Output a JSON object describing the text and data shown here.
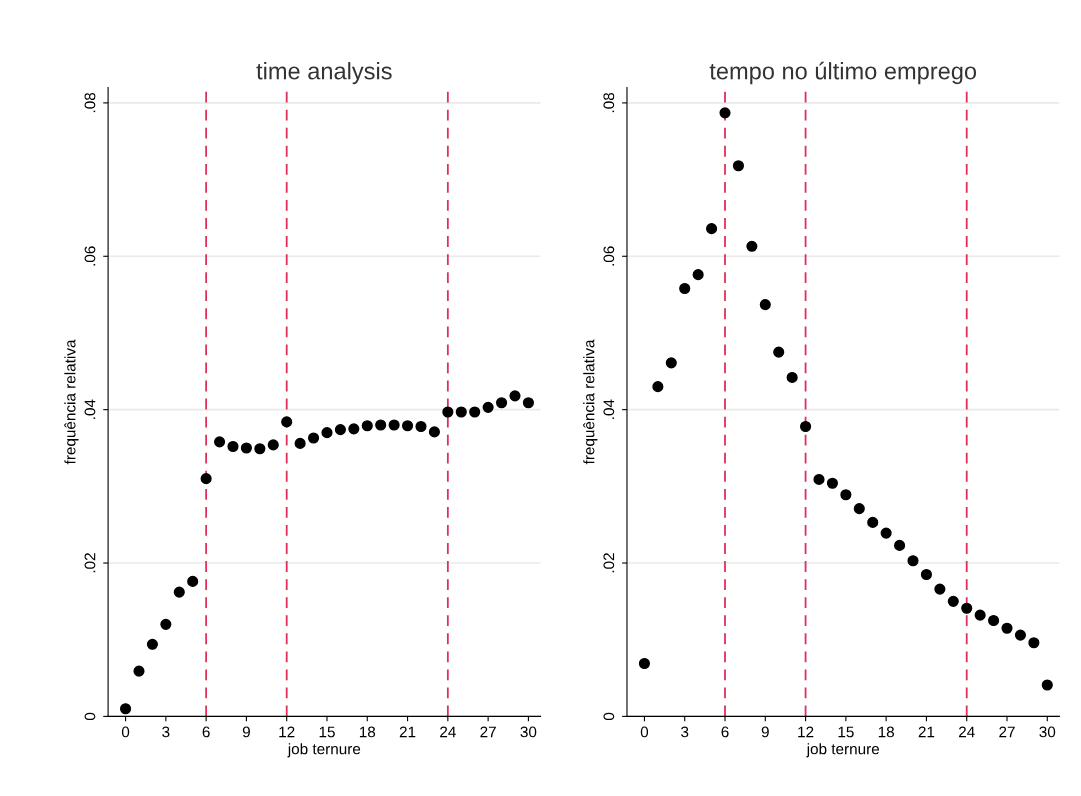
{
  "chart_data": [
    {
      "type": "scatter",
      "title": "time analysis",
      "xlabel": "job ternure",
      "ylabel": "frequência relativa",
      "x": [
        0,
        1,
        2,
        3,
        4,
        5,
        6,
        7,
        8,
        9,
        10,
        11,
        12,
        13,
        14,
        15,
        16,
        17,
        18,
        19,
        20,
        21,
        22,
        23,
        24,
        25,
        26,
        27,
        28,
        29,
        30
      ],
      "series": [
        {
          "color": "#000000",
          "values": [
            0.001,
            0.0059,
            0.0094,
            0.012,
            0.0162,
            0.0176,
            0.031,
            0.0358,
            0.0352,
            0.035,
            0.0349,
            0.0354,
            0.0384,
            0.0356,
            0.0363,
            0.037,
            0.0374,
            0.0375,
            0.0379,
            0.038,
            0.038,
            0.0379,
            0.0378,
            0.0371,
            0.0397,
            0.0397,
            0.0397,
            0.0403,
            0.0409,
            0.0418,
            0.0409
          ]
        }
      ],
      "xlim": [
        -1.3,
        30.9
      ],
      "xticks": [
        0,
        3,
        6,
        9,
        12,
        15,
        18,
        21,
        24,
        27,
        30
      ],
      "ylim": [
        0,
        0.082
      ],
      "yticks": [
        {
          "value": 0,
          "label": "0"
        },
        {
          "value": 0.02,
          "label": ".02"
        },
        {
          "value": 0.04,
          "label": ".04"
        },
        {
          "value": 0.06,
          "label": ".06"
        },
        {
          "value": 0.08,
          "label": ".08"
        }
      ],
      "grid": "y",
      "marker": "circle",
      "ref_lines": [
        {
          "axis": "x",
          "value": 6,
          "color": "#e0305a",
          "line_style": "dashed"
        },
        {
          "axis": "x",
          "value": 12,
          "color": "#e0305a",
          "line_style": "dashed"
        },
        {
          "axis": "x",
          "value": 24,
          "color": "#e0305a",
          "line_style": "dashed"
        }
      ]
    },
    {
      "type": "scatter",
      "title": "tempo no último emprego",
      "xlabel": "job ternure",
      "ylabel": "frequência relativa",
      "x": [
        0,
        1,
        2,
        3,
        4,
        5,
        6,
        7,
        8,
        9,
        10,
        11,
        12,
        13,
        14,
        15,
        16,
        17,
        18,
        19,
        20,
        21,
        22,
        23,
        24,
        25,
        26,
        27,
        28,
        29,
        30
      ],
      "series": [
        {
          "color": "#000000",
          "values": [
            0.0069,
            0.043,
            0.0461,
            0.0558,
            0.0576,
            0.0636,
            0.0787,
            0.0718,
            0.0613,
            0.0537,
            0.0475,
            0.0442,
            0.0378,
            0.0309,
            0.0304,
            0.0289,
            0.0271,
            0.0253,
            0.0239,
            0.0223,
            0.0203,
            0.0185,
            0.0166,
            0.015,
            0.0141,
            0.0132,
            0.0125,
            0.0115,
            0.0106,
            0.0096,
            0.0041
          ]
        }
      ],
      "xlim": [
        -1.3,
        30.9
      ],
      "xticks": [
        0,
        3,
        6,
        9,
        12,
        15,
        18,
        21,
        24,
        27,
        30
      ],
      "ylim": [
        0,
        0.082
      ],
      "yticks": [
        {
          "value": 0,
          "label": "0"
        },
        {
          "value": 0.02,
          "label": ".02"
        },
        {
          "value": 0.04,
          "label": ".04"
        },
        {
          "value": 0.06,
          "label": ".06"
        },
        {
          "value": 0.08,
          "label": ".08"
        }
      ],
      "grid": "y",
      "marker": "circle",
      "ref_lines": [
        {
          "axis": "x",
          "value": 6,
          "color": "#e0305a",
          "line_style": "dashed"
        },
        {
          "axis": "x",
          "value": 12,
          "color": "#e0305a",
          "line_style": "dashed"
        },
        {
          "axis": "x",
          "value": 24,
          "color": "#e0305a",
          "line_style": "dashed"
        }
      ]
    }
  ]
}
